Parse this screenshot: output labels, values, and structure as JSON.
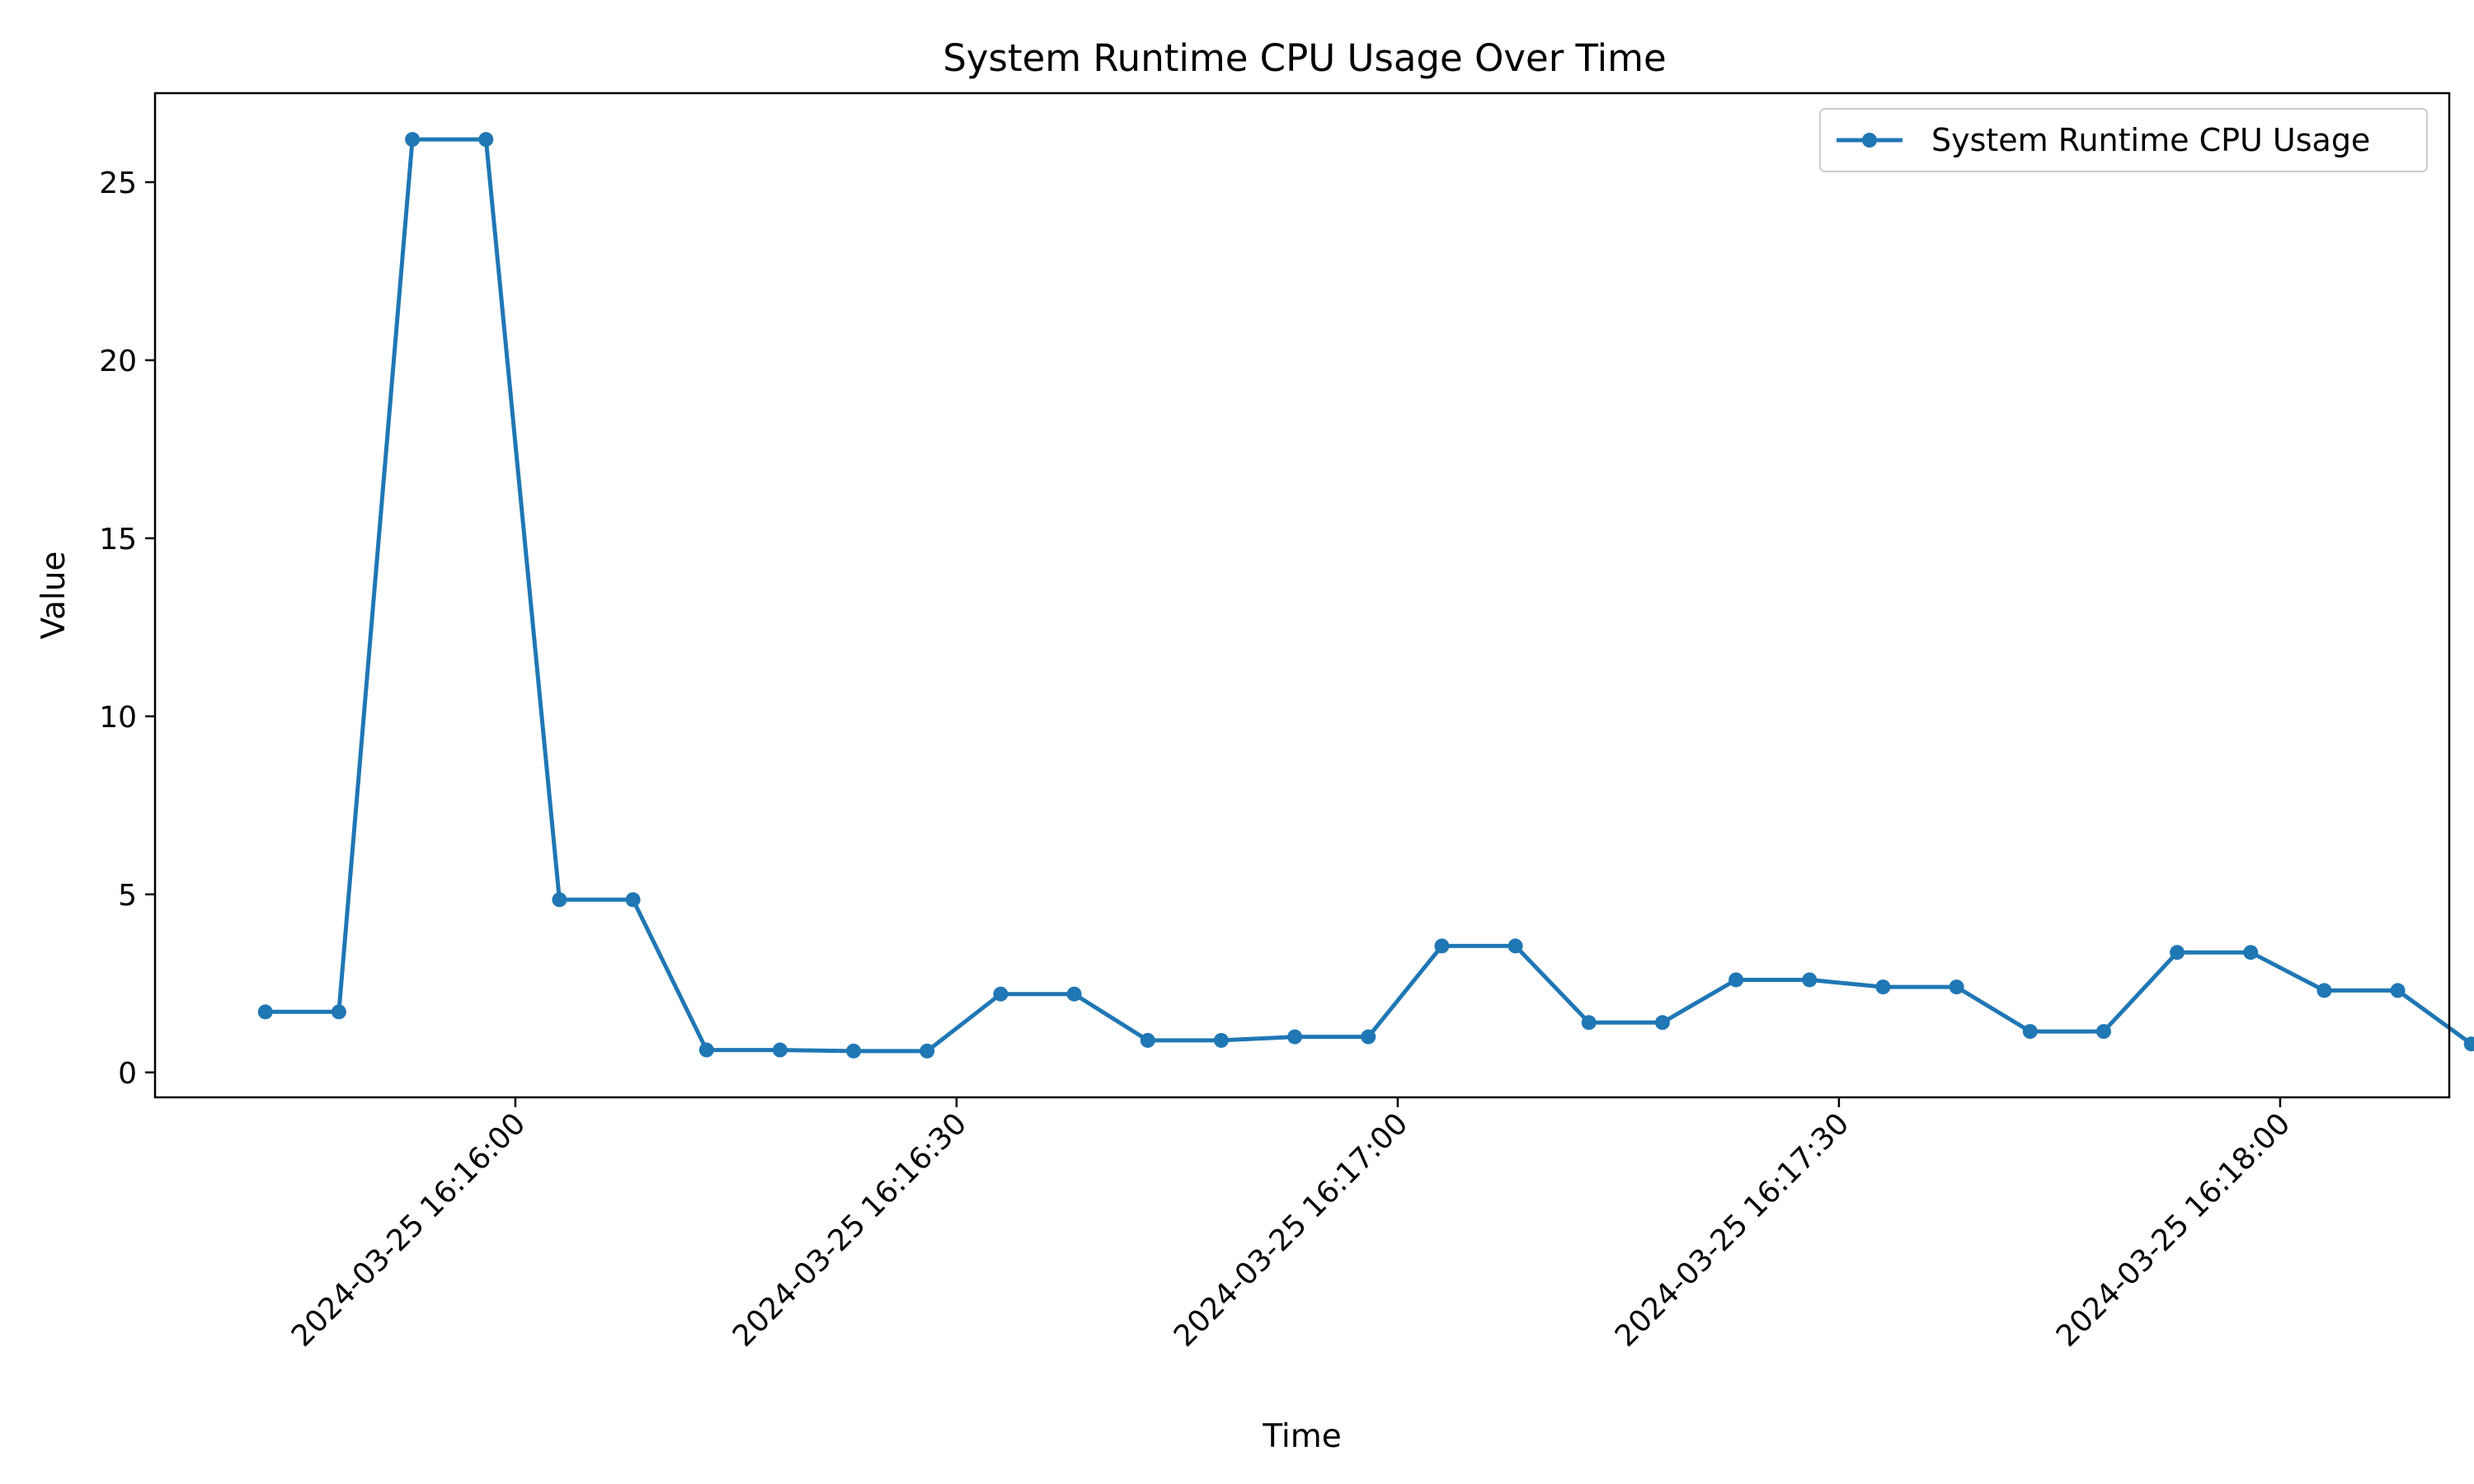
{
  "chart_data": {
    "type": "line",
    "title": "System Runtime CPU Usage Over Time",
    "xlabel": "Time",
    "ylabel": "Value",
    "ylim": [
      -0.7,
      27.5
    ],
    "xlim": [
      "2024-03-25 16:15:35.50",
      "2024-03-25 16:18:11.50"
    ],
    "grid": false,
    "legend_position": "top-right",
    "y_ticks": [
      0,
      5,
      10,
      15,
      20,
      25
    ],
    "x_ticks": [
      {
        "value": "2024-03-25 16:16:00",
        "label": "2024-03-25 16:16:00"
      },
      {
        "value": "2024-03-25 16:16:30",
        "label": "2024-03-25 16:16:30"
      },
      {
        "value": "2024-03-25 16:17:00",
        "label": "2024-03-25 16:17:00"
      },
      {
        "value": "2024-03-25 16:17:30",
        "label": "2024-03-25 16:17:30"
      },
      {
        "value": "2024-03-25 16:18:00",
        "label": "2024-03-25 16:18:00"
      }
    ],
    "series": [
      {
        "name": "System Runtime CPU Usage",
        "color": "#1f77b4",
        "marker": "circle",
        "points": [
          {
            "x": "2024-03-25 16:15:43",
            "y": 1.7
          },
          {
            "x": "2024-03-25 16:15:48",
            "y": 1.7
          },
          {
            "x": "2024-03-25 16:15:53",
            "y": 26.2
          },
          {
            "x": "2024-03-25 16:15:58",
            "y": 26.2
          },
          {
            "x": "2024-03-25 16:16:03",
            "y": 4.85
          },
          {
            "x": "2024-03-25 16:16:08",
            "y": 4.85
          },
          {
            "x": "2024-03-25 16:16:13",
            "y": 0.63
          },
          {
            "x": "2024-03-25 16:16:18",
            "y": 0.63
          },
          {
            "x": "2024-03-25 16:16:23",
            "y": 0.6
          },
          {
            "x": "2024-03-25 16:16:28",
            "y": 0.6
          },
          {
            "x": "2024-03-25 16:16:33",
            "y": 2.2
          },
          {
            "x": "2024-03-25 16:16:38",
            "y": 2.2
          },
          {
            "x": "2024-03-25 16:16:43",
            "y": 0.9
          },
          {
            "x": "2024-03-25 16:16:48",
            "y": 0.9
          },
          {
            "x": "2024-03-25 16:16:53",
            "y": 1.0
          },
          {
            "x": "2024-03-25 16:16:58",
            "y": 1.0
          },
          {
            "x": "2024-03-25 16:17:03",
            "y": 3.55
          },
          {
            "x": "2024-03-25 16:17:08",
            "y": 3.55
          },
          {
            "x": "2024-03-25 16:17:13",
            "y": 1.4
          },
          {
            "x": "2024-03-25 16:17:18",
            "y": 1.4
          },
          {
            "x": "2024-03-25 16:17:23",
            "y": 2.6
          },
          {
            "x": "2024-03-25 16:17:28",
            "y": 2.6
          },
          {
            "x": "2024-03-25 16:17:33",
            "y": 2.4
          },
          {
            "x": "2024-03-25 16:17:38",
            "y": 2.4
          },
          {
            "x": "2024-03-25 16:17:43",
            "y": 1.15
          },
          {
            "x": "2024-03-25 16:17:48",
            "y": 1.15
          },
          {
            "x": "2024-03-25 16:17:53",
            "y": 3.37
          },
          {
            "x": "2024-03-25 16:17:58",
            "y": 3.37
          },
          {
            "x": "2024-03-25 16:18:03",
            "y": 2.3
          },
          {
            "x": "2024-03-25 16:18:08",
            "y": 2.3
          },
          {
            "x": "2024-03-25 16:18:13",
            "y": 0.8
          }
        ]
      }
    ]
  }
}
